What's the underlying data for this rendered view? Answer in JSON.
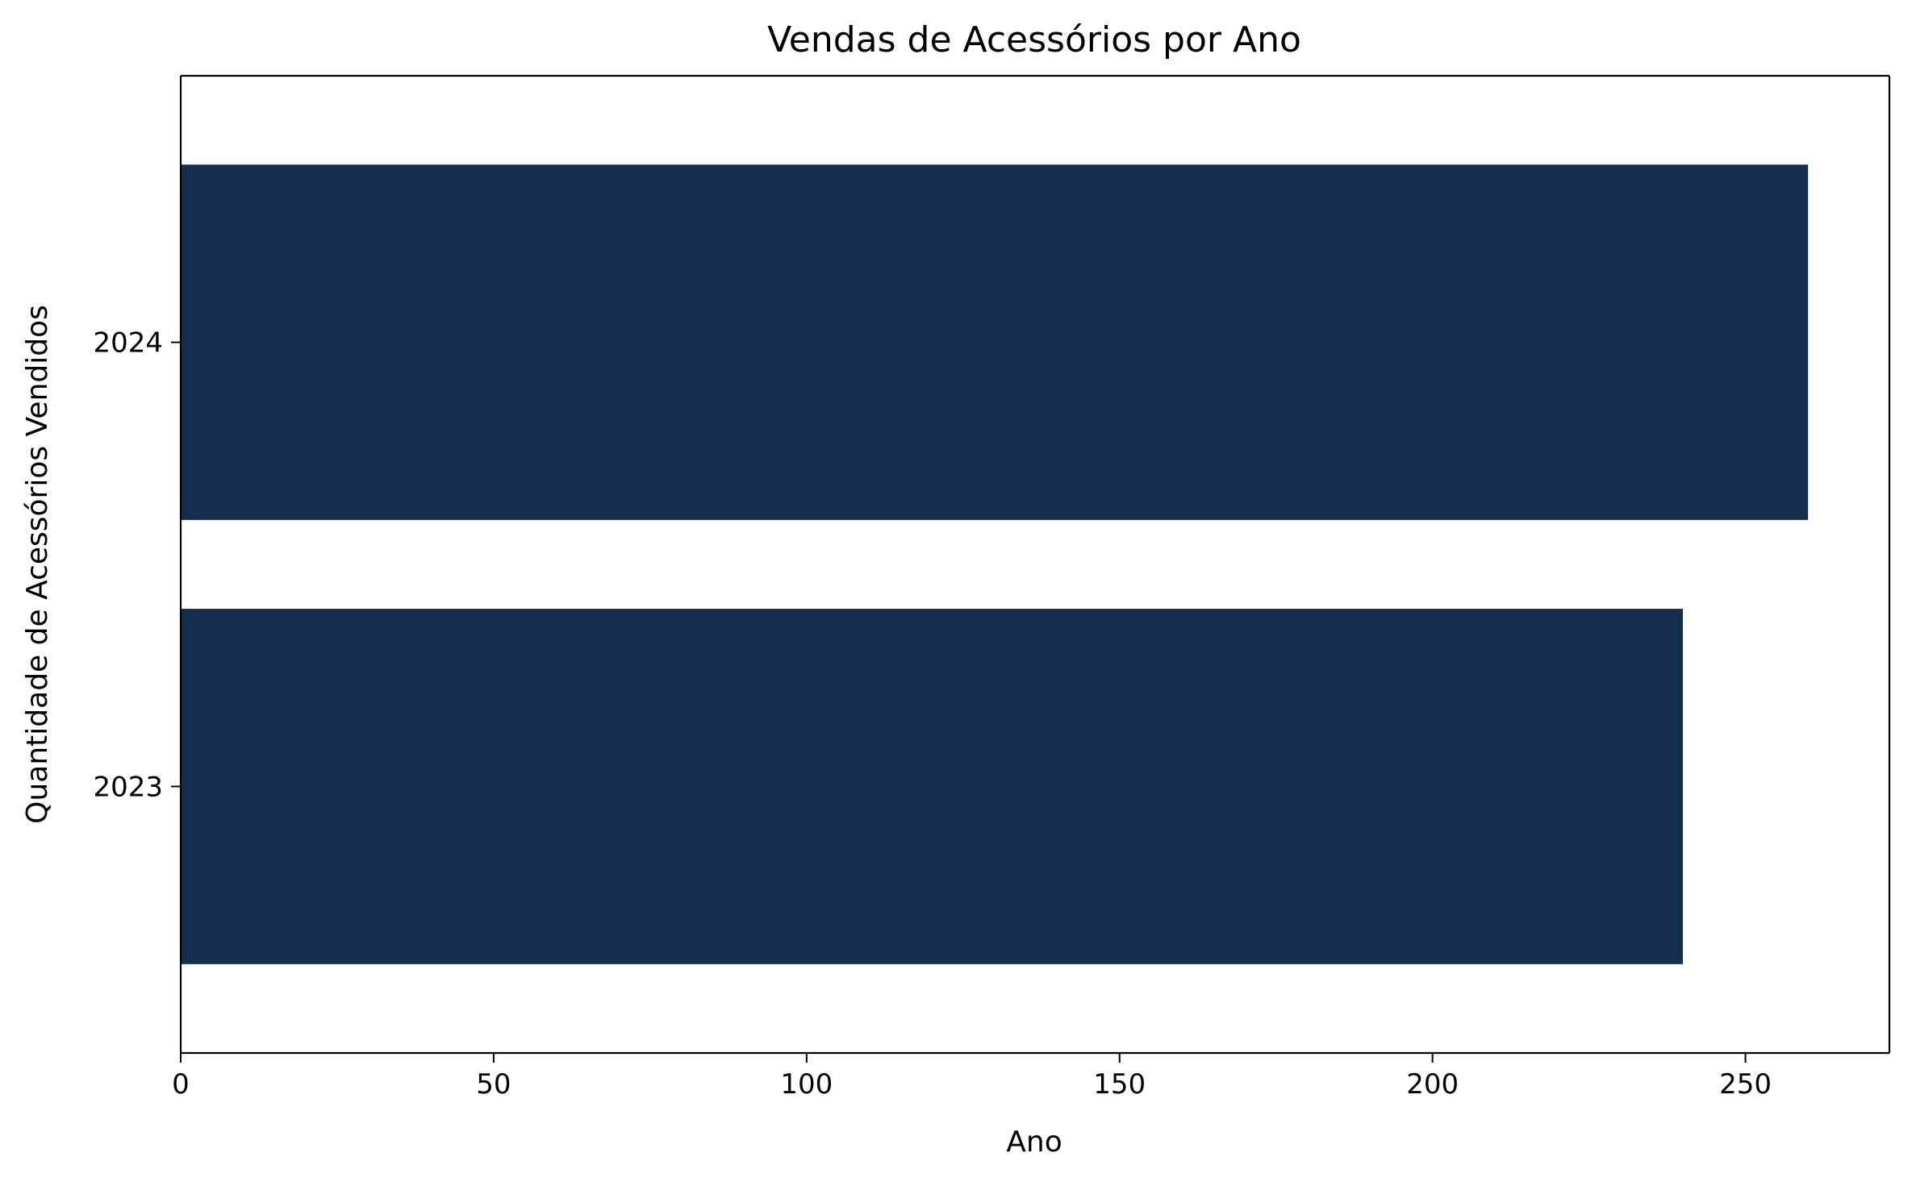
{
  "chart_data": {
    "type": "bar",
    "orientation": "horizontal",
    "title": "Vendas de Acessórios por Ano",
    "xlabel": "Ano",
    "ylabel": "Quantidade de Acessórios Vendidos",
    "categories": [
      "2023",
      "2024"
    ],
    "values": [
      240,
      260
    ],
    "xlim": [
      0,
      273
    ],
    "xticks": [
      0,
      50,
      100,
      150,
      200,
      250
    ],
    "xtick_labels": [
      "0",
      "50",
      "100",
      "150",
      "200",
      "250"
    ],
    "bar_color": "#132e4e",
    "grid": false,
    "legend": false
  }
}
